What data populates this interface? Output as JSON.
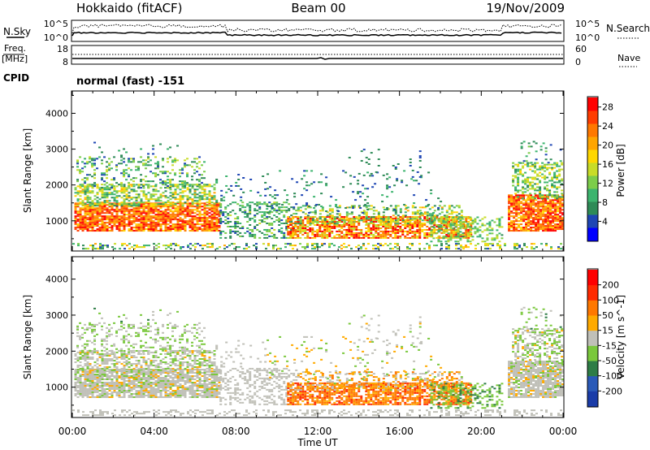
{
  "header": {
    "title_left": "Hokkaido (fitACF)",
    "title_center": "Beam 00",
    "title_right": "19/Nov/2009"
  },
  "noise_panel": {
    "left_label": "N.Sky",
    "right_label": "N.Search",
    "left_ticks": [
      "10^5",
      "10^0"
    ],
    "right_ticks": [
      "10^5",
      "10^0"
    ]
  },
  "freq_panel": {
    "left_label_1": "Freq.",
    "left_label_2": "[MHz]",
    "right_label": "Nave",
    "left_ticks": [
      "18",
      "8"
    ],
    "right_ticks": [
      "60",
      "0"
    ]
  },
  "cpid": {
    "label": "CPID",
    "value": "normal (fast) -151"
  },
  "chart_data": [
    {
      "type": "heatmap",
      "panel": "power",
      "title": "",
      "ylabel": "Slant Range [km]",
      "xlabel": "",
      "x_ticks": [
        "00:00",
        "04:00",
        "08:00",
        "12:00",
        "16:00",
        "20:00",
        "00:00"
      ],
      "y_ticks": [
        "1000",
        "2000",
        "3000",
        "4000"
      ],
      "ylim": [
        180,
        4600
      ],
      "colorbar": {
        "label": "Power [dB]",
        "ticks": [
          "4",
          "8",
          "12",
          "16",
          "20",
          "24",
          "28"
        ],
        "range": [
          0,
          30
        ],
        "colors": [
          "#0000ff",
          "#1e46b4",
          "#2e8b57",
          "#3cb46e",
          "#7ccd4a",
          "#c8dc28",
          "#ffd700",
          "#ffa500",
          "#ff7800",
          "#ff3c00",
          "#ff0000"
        ]
      }
    },
    {
      "type": "heatmap",
      "panel": "velocity",
      "title": "",
      "ylabel": "Slant Range [km]",
      "xlabel": "Time UT",
      "x_ticks": [
        "00:00",
        "04:00",
        "08:00",
        "12:00",
        "16:00",
        "20:00",
        "00:00"
      ],
      "y_ticks": [
        "1000",
        "2000",
        "3000",
        "4000"
      ],
      "ylim": [
        180,
        4600
      ],
      "colorbar": {
        "label": "Velocity [m s^-1]",
        "ticks": [
          "200",
          "100",
          "50",
          "15",
          "-15",
          "-50",
          "-100",
          "-200"
        ],
        "range": [
          -250,
          250
        ],
        "colors": [
          "#1a3ca8",
          "#2a5ab8",
          "#2e7d46",
          "#7ac83c",
          "#c0c0b8",
          "#ffaa00",
          "#ff7800",
          "#ff2a00",
          "#ff0000"
        ]
      }
    }
  ]
}
